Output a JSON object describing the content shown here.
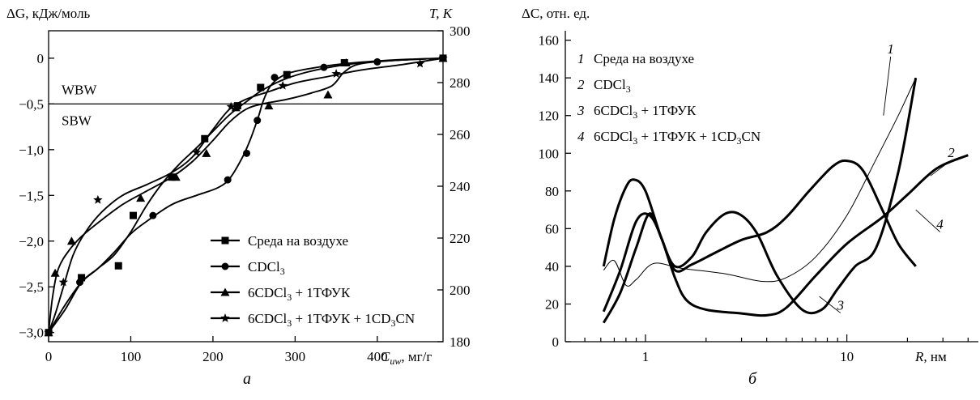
{
  "chart_data": [
    {
      "type": "line",
      "panel_label": "а",
      "ylabel": "ΔG, кДж/моль",
      "ylabel_right": "T, K",
      "xlabel": "C",
      "xlabel_subscript": "uw",
      "xlabel_unit": ", мг/г",
      "xlim": [
        0,
        480
      ],
      "ylim": [
        -3.1,
        0.3
      ],
      "ylim_right": [
        180,
        300
      ],
      "x_ticks": [
        0,
        100,
        200,
        300,
        400
      ],
      "x_tick_labels": [
        "0",
        "100",
        "200",
        "300",
        "400"
      ],
      "y_ticks": [
        0,
        -0.5,
        -1.0,
        -1.5,
        -2.0,
        -2.5,
        -3.0
      ],
      "y_tick_labels": [
        "0",
        "−0,5",
        "−1,0",
        "−1,5",
        "−2,0",
        "−2,5",
        "−3,0"
      ],
      "y_right_ticks": [
        180,
        200,
        220,
        240,
        260,
        280,
        300
      ],
      "y_right_tick_labels": [
        "180",
        "200",
        "220",
        "240",
        "260",
        "280",
        "300"
      ],
      "reference_line": {
        "y": -0.5,
        "label_above": "WBW",
        "label_below": "SBW"
      },
      "legend_placement": "bottom-right",
      "series": [
        {
          "name": "Среда на воздухе",
          "name_parts": [
            {
              "t": "Среда на воздухе"
            }
          ],
          "marker": "square",
          "points": [
            [
              0,
              -3.0
            ],
            [
              40,
              -2.4
            ],
            [
              85,
              -2.27
            ],
            [
              103,
              -1.72
            ],
            [
              150,
              -1.3
            ],
            [
              190,
              -0.88
            ],
            [
              230,
              -0.52
            ],
            [
              258,
              -0.32
            ],
            [
              290,
              -0.18
            ],
            [
              360,
              -0.05
            ],
            [
              480,
              0.0
            ]
          ],
          "curve": [
            [
              0,
              -3.0
            ],
            [
              20,
              -2.75
            ],
            [
              40,
              -2.45
            ],
            [
              60,
              -2.3
            ],
            [
              80,
              -2.15
            ],
            [
              100,
              -1.9
            ],
            [
              120,
              -1.6
            ],
            [
              140,
              -1.35
            ],
            [
              160,
              -1.15
            ],
            [
              180,
              -0.98
            ],
            [
              200,
              -0.8
            ],
            [
              220,
              -0.62
            ],
            [
              240,
              -0.48
            ],
            [
              260,
              -0.35
            ],
            [
              290,
              -0.22
            ],
            [
              330,
              -0.12
            ],
            [
              380,
              -0.05
            ],
            [
              430,
              -0.02
            ],
            [
              480,
              0.0
            ]
          ]
        },
        {
          "name": "CDCl3",
          "name_parts": [
            {
              "t": "CDCl"
            },
            {
              "t": "3",
              "sub": true
            }
          ],
          "marker": "circle",
          "points": [
            [
              0,
              -3.0
            ],
            [
              38,
              -2.45
            ],
            [
              127,
              -1.72
            ],
            [
              218,
              -1.33
            ],
            [
              241,
              -1.04
            ],
            [
              254,
              -0.68
            ],
            [
              275,
              -0.21
            ],
            [
              335,
              -0.1
            ],
            [
              400,
              -0.04
            ],
            [
              480,
              0.0
            ]
          ],
          "curve": [
            [
              0,
              -3.0
            ],
            [
              20,
              -2.7
            ],
            [
              40,
              -2.45
            ],
            [
              60,
              -2.3
            ],
            [
              80,
              -2.12
            ],
            [
              100,
              -1.92
            ],
            [
              120,
              -1.78
            ],
            [
              150,
              -1.6
            ],
            [
              180,
              -1.5
            ],
            [
              205,
              -1.42
            ],
            [
              220,
              -1.32
            ],
            [
              235,
              -1.1
            ],
            [
              245,
              -0.9
            ],
            [
              255,
              -0.65
            ],
            [
              262,
              -0.45
            ],
            [
              272,
              -0.28
            ],
            [
              290,
              -0.17
            ],
            [
              320,
              -0.11
            ],
            [
              360,
              -0.06
            ],
            [
              420,
              -0.02
            ],
            [
              480,
              0.0
            ]
          ]
        },
        {
          "name": "6CDCl3 + 1ТФУК",
          "name_parts": [
            {
              "t": "6CDCl"
            },
            {
              "t": "3",
              "sub": true
            },
            {
              "t": " + 1ТФУК"
            }
          ],
          "marker": "triangle",
          "points": [
            [
              0,
              -3.0
            ],
            [
              8,
              -2.35
            ],
            [
              28,
              -2.0
            ],
            [
              112,
              -1.53
            ],
            [
              155,
              -1.3
            ],
            [
              192,
              -1.04
            ],
            [
              228,
              -0.54
            ],
            [
              268,
              -0.52
            ],
            [
              340,
              -0.4
            ],
            [
              362,
              -0.05
            ],
            [
              480,
              0.0
            ]
          ],
          "curve": [
            [
              0,
              -3.0
            ],
            [
              5,
              -2.6
            ],
            [
              12,
              -2.3
            ],
            [
              25,
              -2.1
            ],
            [
              40,
              -1.95
            ],
            [
              60,
              -1.8
            ],
            [
              90,
              -1.6
            ],
            [
              120,
              -1.45
            ],
            [
              150,
              -1.3
            ],
            [
              175,
              -1.13
            ],
            [
              200,
              -0.9
            ],
            [
              220,
              -0.7
            ],
            [
              240,
              -0.56
            ],
            [
              260,
              -0.5
            ],
            [
              290,
              -0.45
            ],
            [
              320,
              -0.38
            ],
            [
              345,
              -0.3
            ],
            [
              360,
              -0.15
            ],
            [
              380,
              -0.06
            ],
            [
              430,
              -0.02
            ],
            [
              480,
              0.0
            ]
          ]
        },
        {
          "name": "6CDCl3 + 1ТФУК + 1CD3CN",
          "name_parts": [
            {
              "t": "6CDCl"
            },
            {
              "t": "3",
              "sub": true
            },
            {
              "t": " + 1ТФУК + 1CD"
            },
            {
              "t": "3",
              "sub": true
            },
            {
              "t": "CN"
            }
          ],
          "marker": "star",
          "points": [
            [
              0,
              -3.0
            ],
            [
              18,
              -2.45
            ],
            [
              60,
              -1.55
            ],
            [
              180,
              -1.03
            ],
            [
              222,
              -0.53
            ],
            [
              285,
              -0.3
            ],
            [
              350,
              -0.17
            ],
            [
              452,
              -0.06
            ],
            [
              480,
              0.0
            ]
          ],
          "curve": [
            [
              0,
              -3.0
            ],
            [
              8,
              -2.8
            ],
            [
              18,
              -2.5
            ],
            [
              30,
              -2.15
            ],
            [
              45,
              -1.9
            ],
            [
              65,
              -1.68
            ],
            [
              90,
              -1.5
            ],
            [
              120,
              -1.38
            ],
            [
              150,
              -1.25
            ],
            [
              175,
              -1.08
            ],
            [
              200,
              -0.78
            ],
            [
              220,
              -0.56
            ],
            [
              240,
              -0.45
            ],
            [
              270,
              -0.36
            ],
            [
              300,
              -0.27
            ],
            [
              340,
              -0.2
            ],
            [
              380,
              -0.13
            ],
            [
              430,
              -0.07
            ],
            [
              480,
              0.0
            ]
          ]
        }
      ]
    },
    {
      "type": "line",
      "panel_label": "б",
      "ylabel": "ΔC, отн. ед.",
      "xlabel": "R",
      "xlabel_unit": ", нм",
      "x_scale": "log",
      "xlim": [
        0.4,
        45
      ],
      "ylim": [
        0,
        165
      ],
      "x_ticks": [
        1,
        10
      ],
      "x_tick_labels": [
        "1",
        "10"
      ],
      "y_ticks": [
        0,
        20,
        40,
        60,
        80,
        100,
        120,
        140,
        160
      ],
      "y_tick_labels": [
        "0",
        "20",
        "40",
        "60",
        "80",
        "100",
        "120",
        "140",
        "160"
      ],
      "legend_placement": "top-left",
      "series": [
        {
          "name": "Среда на воздухе",
          "label": "1",
          "name_parts": [
            {
              "t": "Среда на воздухе"
            }
          ],
          "line": "thin",
          "points": [
            [
              0.62,
              38
            ],
            [
              0.7,
              43
            ],
            [
              0.8,
              30
            ],
            [
              0.9,
              33
            ],
            [
              1.1,
              41.5
            ],
            [
              1.5,
              39
            ],
            [
              2.5,
              36
            ],
            [
              3.8,
              32
            ],
            [
              5,
              34
            ],
            [
              7,
              45
            ],
            [
              10,
              67
            ],
            [
              14,
              97
            ],
            [
              18,
              120
            ],
            [
              22,
              140
            ]
          ],
          "leader": {
            "label_xy": [
              16.5,
              153
            ],
            "to_xy": [
              15.2,
              120
            ]
          }
        },
        {
          "name": "CDCl3",
          "label": "2",
          "name_parts": [
            {
              "t": "CDCl"
            },
            {
              "t": "3",
              "sub": true
            }
          ],
          "line": "thick",
          "points": [
            [
              0.62,
              16
            ],
            [
              0.75,
              38
            ],
            [
              0.9,
              64
            ],
            [
              1.05,
              67
            ],
            [
              1.2,
              55
            ],
            [
              1.4,
              34
            ],
            [
              1.6,
              22
            ],
            [
              2.0,
              17
            ],
            [
              3,
              15
            ],
            [
              4,
              14
            ],
            [
              5,
              18
            ],
            [
              7,
              35
            ],
            [
              10,
              52
            ],
            [
              15,
              66
            ],
            [
              20,
              78
            ],
            [
              28,
              92
            ],
            [
              40,
              99
            ]
          ],
          "leader": {
            "label_xy": [
              33,
              98
            ],
            "to_xy": [
              26,
              88
            ]
          }
        },
        {
          "name": "6CDCl3 + 1ТФУК",
          "label": "3",
          "name_parts": [
            {
              "t": "6CDCl"
            },
            {
              "t": "3",
              "sub": true
            },
            {
              "t": " + 1ТФУК"
            }
          ],
          "line": "thick",
          "points": [
            [
              0.62,
              40
            ],
            [
              0.7,
              65
            ],
            [
              0.8,
              82
            ],
            [
              0.88,
              86
            ],
            [
              1.0,
              80
            ],
            [
              1.2,
              55
            ],
            [
              1.4,
              40
            ],
            [
              1.7,
              45
            ],
            [
              2.0,
              58
            ],
            [
              2.5,
              68
            ],
            [
              3.0,
              67
            ],
            [
              3.6,
              57
            ],
            [
              4.5,
              35
            ],
            [
              6,
              17
            ],
            [
              7.5,
              17
            ],
            [
              9,
              28
            ],
            [
              11,
              40
            ],
            [
              14,
              50
            ],
            [
              18,
              90
            ],
            [
              22,
              140
            ]
          ],
          "leader": {
            "label_xy": [
              9.3,
              17
            ],
            "to_xy": [
              7.3,
              24
            ]
          }
        },
        {
          "name": "6CDCl3 + 1ТФУК + 1CD3CN",
          "label": "4",
          "name_parts": [
            {
              "t": "6CDCl"
            },
            {
              "t": "3",
              "sub": true
            },
            {
              "t": " + 1ТФУК + 1CD"
            },
            {
              "t": "3",
              "sub": true
            },
            {
              "t": "CN"
            }
          ],
          "line": "thick",
          "points": [
            [
              0.62,
              10
            ],
            [
              0.75,
              26
            ],
            [
              0.9,
              50
            ],
            [
              1.05,
              68
            ],
            [
              1.2,
              55
            ],
            [
              1.4,
              38
            ],
            [
              1.7,
              41
            ],
            [
              2.2,
              47
            ],
            [
              3,
              54
            ],
            [
              4,
              58
            ],
            [
              5,
              66
            ],
            [
              6.5,
              80
            ],
            [
              8.5,
              93
            ],
            [
              10,
              96
            ],
            [
              12,
              91
            ],
            [
              15,
              70
            ],
            [
              18,
              52
            ],
            [
              22,
              40
            ]
          ],
          "leader": {
            "label_xy": [
              29,
              60
            ],
            "to_xy": [
              22,
              70
            ]
          }
        }
      ]
    }
  ]
}
